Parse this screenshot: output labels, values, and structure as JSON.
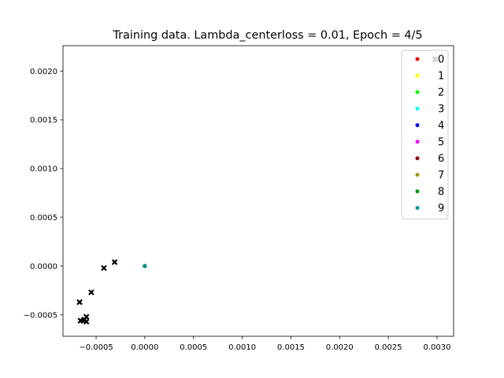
{
  "chart_data": {
    "type": "scatter",
    "title": "Training data. Lambda_centerloss = 0.01, Epoch = 4/5",
    "xlabel": "",
    "ylabel": "",
    "xlim": [
      -0.00084,
      0.00317
    ],
    "ylim": [
      -0.00072,
      0.00226
    ],
    "x_ticks": [
      -0.0005,
      0.0,
      0.0005,
      0.001,
      0.0015,
      0.002,
      0.0025,
      0.003
    ],
    "x_tick_labels": [
      "−0.0005",
      "0.0000",
      "0.0005",
      "0.0010",
      "0.0015",
      "0.0020",
      "0.0025",
      "0.0030"
    ],
    "y_ticks": [
      -0.0005,
      0.0,
      0.0005,
      0.001,
      0.0015,
      0.002
    ],
    "y_tick_labels": [
      "−0.0005",
      "0.0000",
      "0.0005",
      "0.0010",
      "0.0015",
      "0.0020"
    ],
    "grid": false,
    "legend_position": "top-right",
    "series": [
      {
        "name": "0",
        "color": "#ff0000",
        "x": [
          0.0
        ],
        "y": [
          0.0
        ]
      },
      {
        "name": "1",
        "color": "#ffff00",
        "x": [
          0.0
        ],
        "y": [
          0.0
        ]
      },
      {
        "name": "2",
        "color": "#00ff00",
        "x": [
          0.0
        ],
        "y": [
          0.0
        ]
      },
      {
        "name": "3",
        "color": "#00ffff",
        "x": [
          0.0
        ],
        "y": [
          0.0
        ]
      },
      {
        "name": "4",
        "color": "#0000ff",
        "x": [
          0.0
        ],
        "y": [
          0.0
        ]
      },
      {
        "name": "5",
        "color": "#ff00ff",
        "x": [
          0.0
        ],
        "y": [
          0.0
        ]
      },
      {
        "name": "6",
        "color": "#990000",
        "x": [
          0.0
        ],
        "y": [
          0.0
        ]
      },
      {
        "name": "7",
        "color": "#999900",
        "x": [
          0.0
        ],
        "y": [
          0.0
        ]
      },
      {
        "name": "8",
        "color": "#009900",
        "x": [
          0.0
        ],
        "y": [
          0.0
        ]
      },
      {
        "name": "9",
        "color": "#009999",
        "x": [
          0.0
        ],
        "y": [
          0.0
        ]
      }
    ],
    "centers": {
      "color": "#000000",
      "marker": "x",
      "x": [
        0.00298,
        -0.00031,
        -0.00042,
        -0.00055,
        -0.00067,
        -0.00066,
        -0.00063,
        -0.0006,
        -0.0006,
        -0.00062
      ],
      "y": [
        0.00212,
        4e-05,
        -2e-05,
        -0.00027,
        -0.00037,
        -0.00056,
        -0.00056,
        -0.00052,
        -0.00057,
        -0.00055
      ]
    }
  }
}
